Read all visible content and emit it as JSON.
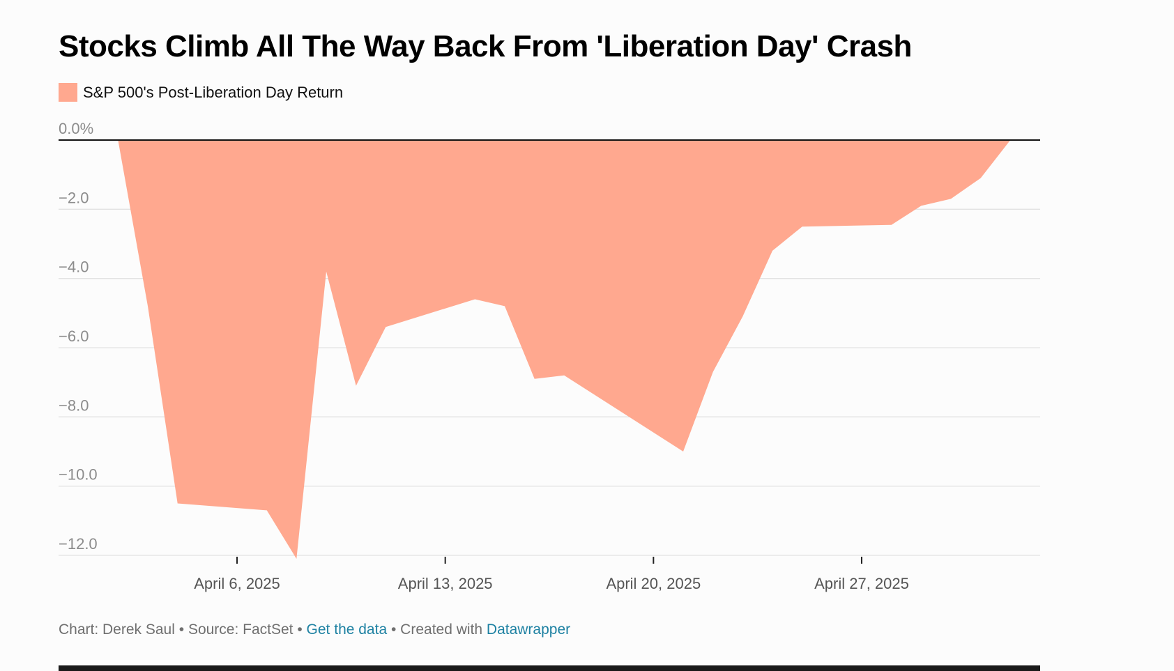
{
  "chart_data": {
    "type": "area",
    "title": "Stocks Climb All The Way Back From 'Liberation Day' Crash",
    "legend": [
      {
        "name": "S&P 500's Post-Liberation Day Return",
        "color": "#ffa88f"
      }
    ],
    "series": [
      {
        "name": "S&P 500's Post-Liberation Day Return",
        "color": "#ffa88f",
        "points": [
          {
            "x": "2025-04-02",
            "y": 0.0
          },
          {
            "x": "2025-04-03",
            "y": -4.8
          },
          {
            "x": "2025-04-04",
            "y": -10.5
          },
          {
            "x": "2025-04-07",
            "y": -10.7
          },
          {
            "x": "2025-04-08",
            "y": -12.1
          },
          {
            "x": "2025-04-09",
            "y": -3.8
          },
          {
            "x": "2025-04-10",
            "y": -7.1
          },
          {
            "x": "2025-04-11",
            "y": -5.4
          },
          {
            "x": "2025-04-14",
            "y": -4.6
          },
          {
            "x": "2025-04-15",
            "y": -4.8
          },
          {
            "x": "2025-04-16",
            "y": -6.9
          },
          {
            "x": "2025-04-17",
            "y": -6.8
          },
          {
            "x": "2025-04-21",
            "y": -9.0
          },
          {
            "x": "2025-04-22",
            "y": -6.7
          },
          {
            "x": "2025-04-23",
            "y": -5.1
          },
          {
            "x": "2025-04-24",
            "y": -3.2
          },
          {
            "x": "2025-04-25",
            "y": -2.5
          },
          {
            "x": "2025-04-28",
            "y": -2.45
          },
          {
            "x": "2025-04-29",
            "y": -1.9
          },
          {
            "x": "2025-04-30",
            "y": -1.7
          },
          {
            "x": "2025-05-01",
            "y": -1.1
          },
          {
            "x": "2025-05-02",
            "y": 0.0
          }
        ]
      }
    ],
    "y_ticks": [
      {
        "value": 0,
        "label": "0.0%"
      },
      {
        "value": -2,
        "label": "−2.0"
      },
      {
        "value": -4,
        "label": "−4.0"
      },
      {
        "value": -6,
        "label": "−6.0"
      },
      {
        "value": -8,
        "label": "−8.0"
      },
      {
        "value": -10,
        "label": "−10.0"
      },
      {
        "value": -12,
        "label": "−12.0"
      }
    ],
    "x_ticks": [
      {
        "value": "2025-04-06",
        "label": "April 6, 2025"
      },
      {
        "value": "2025-04-13",
        "label": "April 13, 2025"
      },
      {
        "value": "2025-04-20",
        "label": "April 20, 2025"
      },
      {
        "value": "2025-04-27",
        "label": "April 27, 2025"
      }
    ],
    "ylim": [
      -12,
      0
    ],
    "xlim": [
      "2025-03-31",
      "2025-05-03"
    ],
    "grid": true,
    "legend_position": "top-left"
  },
  "footer": {
    "credit": "Chart: Derek Saul",
    "source": "Source: FactSet",
    "get_data": "Get the data",
    "created_prefix": "Created with",
    "tool": "Datawrapper",
    "separator": " • "
  }
}
